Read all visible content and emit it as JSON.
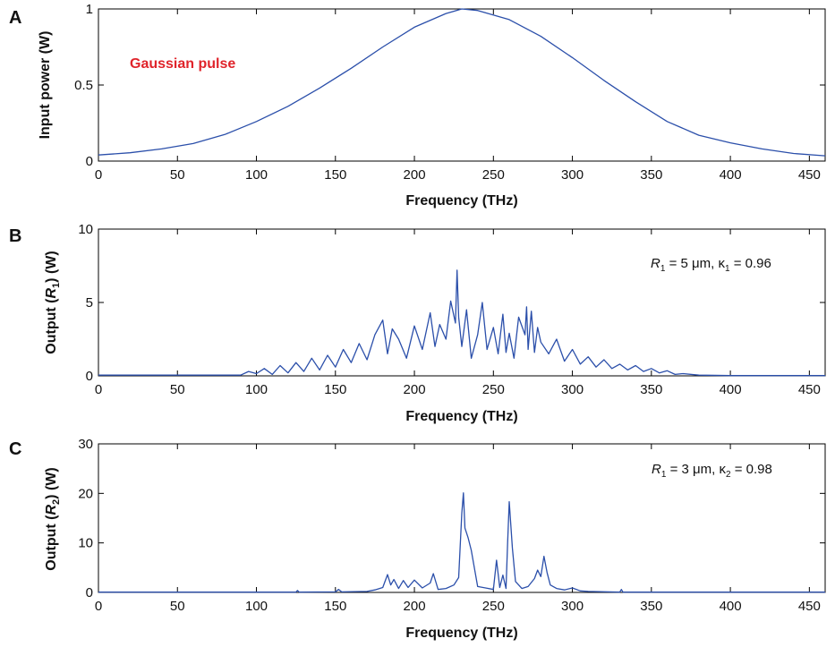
{
  "colors": {
    "line": "#2b4faa",
    "annotation_red": "#e0242b"
  },
  "chart_data": [
    {
      "panel": "A",
      "type": "line",
      "xlabel": "Frequency (THz)",
      "ylabel": "Input power (W)",
      "xlim": [
        0,
        460
      ],
      "ylim": [
        0,
        1
      ],
      "xticks": [
        0,
        50,
        100,
        150,
        200,
        250,
        300,
        350,
        400,
        450
      ],
      "xtick_labels": [
        "0",
        "50",
        "100",
        "150",
        "200",
        "250",
        "300",
        "350",
        "400",
        "450"
      ],
      "yticks": [
        0,
        0.5,
        1
      ],
      "ytick_labels": [
        "0",
        "0.5",
        "1"
      ],
      "annotation": "Gaussian pulse",
      "grid": false,
      "series": [
        {
          "x": [
            0,
            20,
            40,
            60,
            80,
            100,
            120,
            140,
            160,
            180,
            200,
            220,
            230,
            240,
            260,
            280,
            300,
            320,
            340,
            360,
            380,
            400,
            420,
            440,
            460
          ],
          "values": [
            0.04,
            0.055,
            0.08,
            0.115,
            0.175,
            0.26,
            0.36,
            0.48,
            0.61,
            0.75,
            0.88,
            0.97,
            1.0,
            0.99,
            0.93,
            0.82,
            0.68,
            0.53,
            0.39,
            0.26,
            0.17,
            0.12,
            0.08,
            0.05,
            0.035
          ]
        }
      ]
    },
    {
      "panel": "B",
      "type": "line",
      "xlabel": "Frequency (THz)",
      "ylabel_parts": [
        "Output (",
        "R",
        "1",
        ") (W)"
      ],
      "xlim": [
        0,
        460
      ],
      "ylim": [
        0,
        10
      ],
      "xticks": [
        0,
        50,
        100,
        150,
        200,
        250,
        300,
        350,
        400,
        450
      ],
      "xtick_labels": [
        "0",
        "50",
        "100",
        "150",
        "200",
        "250",
        "300",
        "350",
        "400",
        "450"
      ],
      "yticks": [
        0,
        5,
        10
      ],
      "ytick_labels": [
        "0",
        "5",
        "10"
      ],
      "annotation_parts": [
        "R",
        "1",
        " = 5 μm, κ",
        "1",
        " = 0.96"
      ],
      "grid": false,
      "series": [
        {
          "x": [
            0,
            90,
            95,
            100,
            105,
            110,
            115,
            120,
            125,
            130,
            135,
            140,
            145,
            150,
            155,
            160,
            165,
            170,
            175,
            180,
            183,
            186,
            190,
            195,
            200,
            205,
            210,
            213,
            216,
            220,
            223,
            226,
            227,
            228,
            230,
            233,
            236,
            240,
            243,
            246,
            250,
            253,
            256,
            258,
            260,
            263,
            266,
            270,
            271,
            272,
            274,
            276,
            278,
            280,
            285,
            290,
            295,
            300,
            305,
            310,
            315,
            320,
            325,
            330,
            335,
            340,
            345,
            350,
            355,
            360,
            365,
            370,
            380,
            400,
            420,
            440,
            460
          ],
          "values": [
            0.05,
            0.05,
            0.3,
            0.15,
            0.5,
            0.1,
            0.7,
            0.2,
            0.9,
            0.3,
            1.2,
            0.4,
            1.4,
            0.6,
            1.8,
            0.9,
            2.2,
            1.1,
            2.8,
            3.8,
            1.5,
            3.2,
            2.5,
            1.2,
            3.4,
            1.8,
            4.3,
            2.0,
            3.5,
            2.5,
            5.1,
            3.6,
            7.2,
            4.0,
            2.0,
            4.5,
            1.2,
            2.8,
            5.0,
            1.8,
            3.3,
            1.5,
            4.2,
            1.6,
            2.9,
            1.2,
            4.0,
            2.8,
            4.7,
            1.8,
            4.4,
            1.6,
            3.3,
            2.3,
            1.5,
            2.5,
            1.0,
            1.8,
            0.8,
            1.3,
            0.6,
            1.1,
            0.5,
            0.8,
            0.4,
            0.7,
            0.3,
            0.5,
            0.2,
            0.35,
            0.1,
            0.15,
            0.05,
            0.02,
            0.02,
            0.02,
            0.02
          ]
        }
      ]
    },
    {
      "panel": "C",
      "type": "line",
      "xlabel": "Frequency (THz)",
      "ylabel_parts": [
        "Output (",
        "R",
        "2",
        ") (W)"
      ],
      "xlim": [
        0,
        460
      ],
      "ylim": [
        0,
        30
      ],
      "xticks": [
        0,
        50,
        100,
        150,
        200,
        250,
        300,
        350,
        400,
        450
      ],
      "xtick_labels": [
        "0",
        "50",
        "100",
        "150",
        "200",
        "250",
        "300",
        "350",
        "400",
        "450"
      ],
      "yticks": [
        0,
        10,
        20,
        30
      ],
      "ytick_labels": [
        "0",
        "10",
        "20",
        "30"
      ],
      "annotation_parts": [
        "R",
        "1",
        " = 3 μm, κ",
        "2",
        " = 0.98"
      ],
      "grid": false,
      "series": [
        {
          "x": [
            0,
            125,
            126,
            127,
            150,
            152,
            154,
            170,
            175,
            180,
            183,
            185,
            187,
            190,
            193,
            196,
            200,
            205,
            210,
            212,
            215,
            220,
            225,
            228,
            230,
            231,
            232,
            234,
            236,
            240,
            245,
            250,
            252,
            254,
            256,
            258,
            259,
            260,
            262,
            264,
            268,
            272,
            276,
            278,
            280,
            282,
            284,
            286,
            290,
            295,
            300,
            305,
            310,
            330,
            331,
            332,
            460
          ],
          "values": [
            0.05,
            0.05,
            0.4,
            0.05,
            0.1,
            0.6,
            0.1,
            0.2,
            0.5,
            1.0,
            3.6,
            1.5,
            2.6,
            0.8,
            2.4,
            1.0,
            2.5,
            0.9,
            1.9,
            3.8,
            0.6,
            0.8,
            1.5,
            3.0,
            16.0,
            20.1,
            13.0,
            11.0,
            8.5,
            1.2,
            0.9,
            0.6,
            6.5,
            1.0,
            3.5,
            0.8,
            10.0,
            18.3,
            9.0,
            2.2,
            0.8,
            1.2,
            2.8,
            4.5,
            3.2,
            7.3,
            4.0,
            1.5,
            0.8,
            0.5,
            0.9,
            0.3,
            0.2,
            0.05,
            0.6,
            0.05,
            0.05
          ]
        }
      ]
    }
  ]
}
